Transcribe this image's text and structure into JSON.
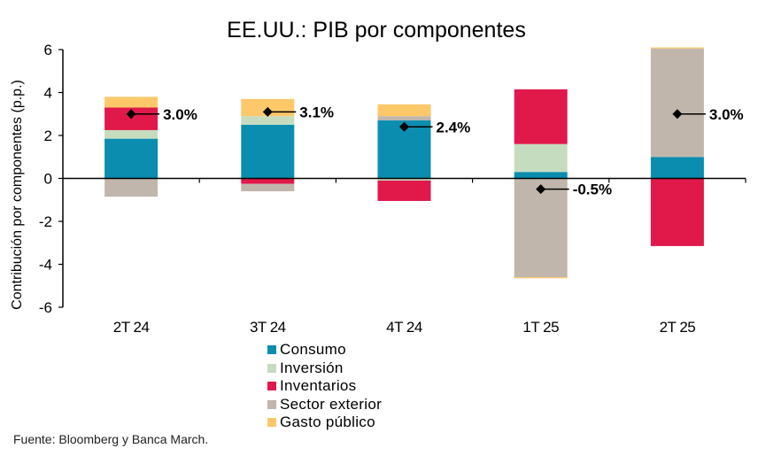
{
  "chart_data": {
    "type": "bar",
    "stacked": true,
    "title": "EE.UU.: PIB por componentes",
    "xlabel": "",
    "ylabel": "Contribución  por componentes (p.p.)",
    "ylim": [
      -6,
      6
    ],
    "yticks": [
      6,
      4,
      2,
      0,
      -2,
      -4,
      -6
    ],
    "grid": false,
    "legend_position": "bottom",
    "categories": [
      "2T 24",
      "3T 24",
      "4T 24",
      "1T 25",
      "2T 25"
    ],
    "series": [
      {
        "name": "Consumo",
        "color": "#0b8db0",
        "values": [
          1.85,
          2.5,
          2.7,
          0.3,
          1.0
        ]
      },
      {
        "name": "Inversión",
        "color": "#c6dcbf",
        "values": [
          0.4,
          0.4,
          -0.1,
          1.3,
          0.0
        ]
      },
      {
        "name": "Inventarios",
        "color": "#e0194a",
        "values": [
          1.05,
          -0.25,
          -0.95,
          2.55,
          -3.15
        ]
      },
      {
        "name": "Sector exterior",
        "color": "#c0b6ac",
        "values": [
          -0.85,
          -0.35,
          0.2,
          -4.6,
          5.05
        ]
      },
      {
        "name": "Gasto público",
        "color": "#fcc86a",
        "values": [
          0.5,
          0.8,
          0.55,
          -0.05,
          0.05
        ]
      }
    ],
    "totals": {
      "name": "PIB",
      "values": [
        3.0,
        3.1,
        2.4,
        -0.5,
        3.0
      ],
      "labels": [
        "3.0%",
        "3.1%",
        "2.4%",
        "-0.5%",
        "3.0%"
      ]
    }
  },
  "source": "Fuente: Bloomberg  y Banca March."
}
